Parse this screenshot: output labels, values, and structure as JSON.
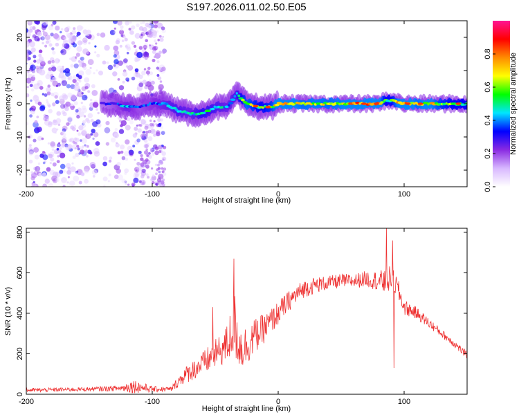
{
  "title": "S197.2026.011.02.50.E05",
  "chart_data": [
    {
      "type": "heatmap",
      "title": "S197.2026.011.02.50.E05",
      "xlabel": "Height of straight line (km)",
      "ylabel": "Frequency (Hz)",
      "xlim": [
        -200,
        150
      ],
      "ylim": [
        -25,
        25
      ],
      "xticks": [
        -200,
        -100,
        0,
        100
      ],
      "yticks": [
        -20,
        -10,
        0,
        10,
        20
      ],
      "colorbar": {
        "label": "Normalized spectral amplitude",
        "range": [
          0,
          1
        ],
        "ticks": [
          "0.0",
          "0.2",
          "0.4",
          "0.6",
          "0.8"
        ],
        "stops": [
          "#ffffff",
          "#d8b8ff",
          "#8a2be2",
          "#0000ff",
          "#00e5ff",
          "#00ff00",
          "#ffff00",
          "#ff8c00",
          "#ff0000",
          "#ff1493"
        ]
      },
      "noise_region": {
        "x": [
          -200,
          -90
        ],
        "y": [
          -25,
          25
        ],
        "amplitude": [
          0.05,
          0.35
        ]
      },
      "ridge": {
        "x": [
          -140,
          -130,
          -120,
          -110,
          -100,
          -90,
          -80,
          -70,
          -60,
          -50,
          -40,
          -33,
          -25,
          -15,
          -5,
          0,
          10,
          20,
          30,
          40,
          50,
          60,
          70,
          80,
          85,
          90,
          100,
          110,
          120,
          130,
          140,
          150
        ],
        "freq": [
          0,
          0,
          -1,
          -1,
          0,
          0,
          -2,
          -3,
          -3,
          -1,
          -1,
          3,
          0,
          -1,
          -1,
          0,
          0,
          0,
          0,
          0,
          0,
          0,
          0,
          0,
          1,
          1,
          0,
          0,
          0,
          0,
          0,
          0
        ],
        "amplitude": [
          0.3,
          0.35,
          0.45,
          0.35,
          0.4,
          0.45,
          0.5,
          0.45,
          0.55,
          0.5,
          0.45,
          0.5,
          0.7,
          0.6,
          0.65,
          0.8,
          0.75,
          0.7,
          0.72,
          0.7,
          0.72,
          0.8,
          0.85,
          0.8,
          0.6,
          0.6,
          0.85,
          0.7,
          0.75,
          0.65,
          0.6,
          0.6
        ]
      }
    },
    {
      "type": "line",
      "xlabel": "Height of straight line (km)",
      "ylabel": "SNR (10 * v/v)",
      "xlim": [
        -200,
        150
      ],
      "ylim": [
        0,
        820
      ],
      "xticks": [
        -200,
        -100,
        0,
        100
      ],
      "yticks": [
        0,
        200,
        400,
        600,
        800
      ],
      "series": [
        {
          "name": "SNR",
          "color": "#ee3333",
          "envelope_x": [
            -200,
            -150,
            -125,
            -115,
            -100,
            -85,
            -75,
            -60,
            -45,
            -40,
            -35,
            -30,
            -25,
            -20,
            -10,
            0,
            10,
            20,
            30,
            40,
            50,
            60,
            70,
            80,
            85,
            90,
            95,
            100,
            110,
            120,
            130,
            140,
            150
          ],
          "envelope_y": [
            20,
            25,
            30,
            40,
            25,
            25,
            90,
            150,
            220,
            250,
            350,
            230,
            240,
            280,
            330,
            400,
            470,
            520,
            540,
            550,
            560,
            560,
            570,
            560,
            550,
            580,
            520,
            430,
            400,
            350,
            300,
            250,
            190
          ],
          "spread": [
            10,
            10,
            15,
            35,
            15,
            12,
            40,
            60,
            80,
            100,
            170,
            120,
            100,
            90,
            70,
            60,
            50,
            45,
            40,
            35,
            35,
            35,
            40,
            50,
            70,
            60,
            55,
            40,
            30,
            25,
            20,
            20,
            20
          ],
          "spikes": [
            [
              -35,
              670
            ],
            [
              -52,
              430
            ],
            [
              86,
              820
            ],
            [
              91,
              760
            ],
            [
              92,
              130
            ],
            [
              84,
              600
            ]
          ]
        }
      ]
    }
  ]
}
